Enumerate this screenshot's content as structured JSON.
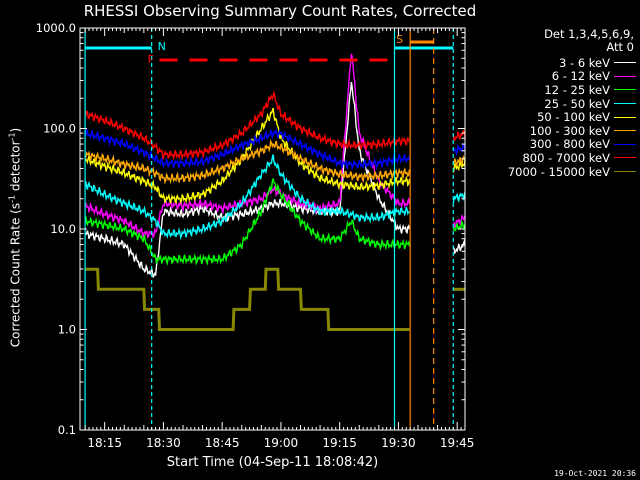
{
  "title": "RHESSI Observing Summary Count Rates, Corrected",
  "xlabel": "Start Time (04-Sep-11 18:08:42)",
  "ylabel_main": "Corrected Count Rate (s",
  "ylabel_sup1": "-1",
  "ylabel_mid": " detector",
  "ylabel_sup2": "-1",
  "ylabel_end": ")",
  "stamp": "19-Oct-2021 20:36",
  "legend": {
    "header_line1": "Det 1,3,4,5,6,9,",
    "header_line2": "Att 0"
  },
  "flags": {
    "F": "F",
    "N": "N",
    "S": "S"
  },
  "colors": {
    "axis": "#ffffff",
    "night": "#00ffff",
    "saa": "#ff8800",
    "flare": "#ff0000"
  },
  "chart_data": {
    "type": "line",
    "title": "RHESSI Observing Summary Count Rates, Corrected",
    "xlabel": "Start Time (04-Sep-11 18:08:42)",
    "ylabel": "Corrected Count Rate (s-1 detector-1)",
    "xlim": [
      "18:08:42",
      "19:47:00"
    ],
    "ylim": [
      0.1,
      1000
    ],
    "yscale": "log",
    "x_ticks": [
      "18:15",
      "18:30",
      "18:45",
      "19:00",
      "19:15",
      "19:30",
      "19:45"
    ],
    "y_ticks": [
      "0.1",
      "1.0",
      "10.0",
      "100.0",
      "1000.0"
    ],
    "legend_position": "right",
    "x": [
      "18:10",
      "18:15",
      "18:20",
      "18:25",
      "18:28",
      "18:30",
      "18:35",
      "18:40",
      "18:45",
      "18:50",
      "18:55",
      "18:58",
      "19:00",
      "19:05",
      "19:10",
      "19:15",
      "19:18",
      "19:20",
      "19:25",
      "19:30",
      "19:33",
      "19:44",
      "19:47"
    ],
    "series": [
      {
        "name": "3 - 6 keV",
        "color": "#ffffff",
        "values": [
          9,
          8,
          7,
          4,
          3.5,
          15,
          14,
          16,
          13,
          14,
          16,
          18,
          18,
          16,
          15,
          15,
          300,
          60,
          20,
          10,
          null,
          6,
          7
        ]
      },
      {
        "name": "6 - 12 keV",
        "color": "#ff00ff",
        "values": [
          17,
          14,
          12,
          9,
          9,
          18,
          17,
          18,
          16,
          18,
          20,
          25,
          22,
          18,
          16,
          18,
          600,
          90,
          30,
          18,
          null,
          11,
          13
        ]
      },
      {
        "name": "12 - 25 keV",
        "color": "#00ff00",
        "values": [
          12,
          11,
          10,
          8,
          5,
          5,
          5,
          5,
          5,
          7,
          15,
          30,
          22,
          12,
          8,
          8,
          12,
          8,
          7,
          7,
          null,
          10,
          11
        ]
      },
      {
        "name": "25 - 50 keV",
        "color": "#00ffff",
        "values": [
          28,
          22,
          18,
          15,
          12,
          9,
          9,
          10,
          12,
          18,
          35,
          50,
          35,
          20,
          15,
          15,
          14,
          13,
          13,
          15,
          null,
          20,
          22
        ]
      },
      {
        "name": "50 - 100 keV",
        "color": "#ffff00",
        "values": [
          50,
          42,
          36,
          30,
          26,
          20,
          20,
          22,
          30,
          50,
          100,
          150,
          80,
          45,
          32,
          28,
          27,
          26,
          27,
          30,
          null,
          40,
          45
        ]
      },
      {
        "name": "100 - 300 keV",
        "color": "#ffaa00",
        "values": [
          55,
          50,
          44,
          40,
          36,
          32,
          32,
          34,
          40,
          50,
          60,
          70,
          65,
          50,
          40,
          35,
          34,
          33,
          34,
          36,
          null,
          45,
          50
        ]
      },
      {
        "name": "300 - 800 keV",
        "color": "#0000ff",
        "values": [
          90,
          80,
          70,
          58,
          50,
          45,
          45,
          47,
          55,
          68,
          80,
          90,
          88,
          70,
          55,
          45,
          44,
          44,
          45,
          50,
          null,
          60,
          65
        ]
      },
      {
        "name": "800 - 7000 keV",
        "color": "#ff0000",
        "values": [
          140,
          120,
          100,
          80,
          65,
          55,
          55,
          58,
          68,
          90,
          140,
          220,
          140,
          100,
          80,
          70,
          68,
          68,
          70,
          75,
          null,
          80,
          90
        ]
      },
      {
        "name": "7000 - 15000 keV",
        "color": "#888800",
        "values": [
          3.5,
          3,
          2.5,
          2,
          1.5,
          1,
          1,
          1,
          1,
          1.5,
          3,
          3.5,
          3,
          2,
          1.5,
          1,
          1,
          1,
          1,
          1,
          null,
          2.5,
          3
        ]
      }
    ],
    "annotations": [
      {
        "label": "F",
        "type": "flare flag",
        "from": "18:29",
        "to": "19:29"
      },
      {
        "label": "N",
        "type": "night",
        "from": "18:10",
        "to": "18:27"
      },
      {
        "label": "N",
        "type": "night",
        "from": "19:29",
        "to": "19:44"
      },
      {
        "label": "S",
        "type": "SAA",
        "from": "19:33",
        "to": "19:39"
      }
    ]
  }
}
